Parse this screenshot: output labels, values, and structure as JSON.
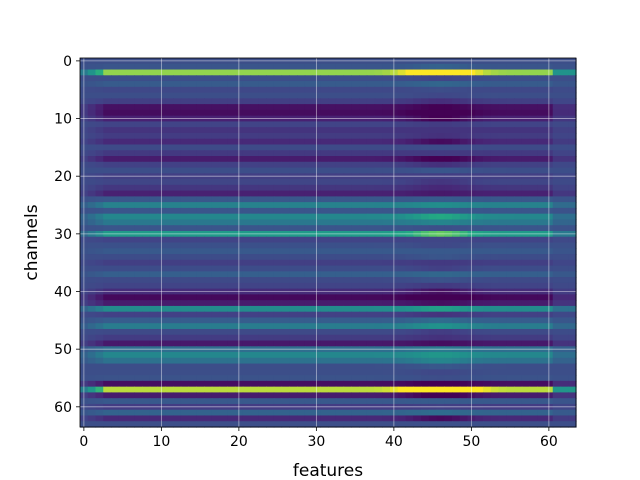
{
  "chart_data": {
    "type": "heatmap",
    "title": "",
    "xlabel": "features",
    "ylabel": "channels",
    "rows": 64,
    "cols": 64,
    "xlim": [
      -0.5,
      63.5
    ],
    "ylim": [
      63.5,
      -0.5
    ],
    "xticks": [
      0,
      10,
      20,
      30,
      40,
      50,
      60
    ],
    "yticks": [
      0,
      10,
      20,
      30,
      40,
      50,
      60
    ],
    "grid": true,
    "colormap": "viridis",
    "value_range": [
      0,
      1
    ],
    "row_base_values": [
      0.3,
      0.33,
      0.92,
      0.3,
      0.36,
      0.27,
      0.3,
      0.23,
      0.06,
      0.04,
      0.12,
      0.25,
      0.19,
      0.22,
      0.15,
      0.28,
      0.21,
      0.1,
      0.24,
      0.3,
      0.23,
      0.26,
      0.2,
      0.12,
      0.34,
      0.55,
      0.33,
      0.58,
      0.5,
      0.33,
      0.68,
      0.25,
      0.31,
      0.35,
      0.29,
      0.23,
      0.29,
      0.38,
      0.28,
      0.25,
      0.16,
      0.03,
      0.1,
      0.6,
      0.24,
      0.37,
      0.52,
      0.28,
      0.22,
      0.09,
      0.45,
      0.58,
      0.47,
      0.3,
      0.3,
      0.32,
      0.05,
      0.95,
      0.1,
      0.35,
      0.22,
      0.4,
      0.15,
      0.3
    ]
  }
}
